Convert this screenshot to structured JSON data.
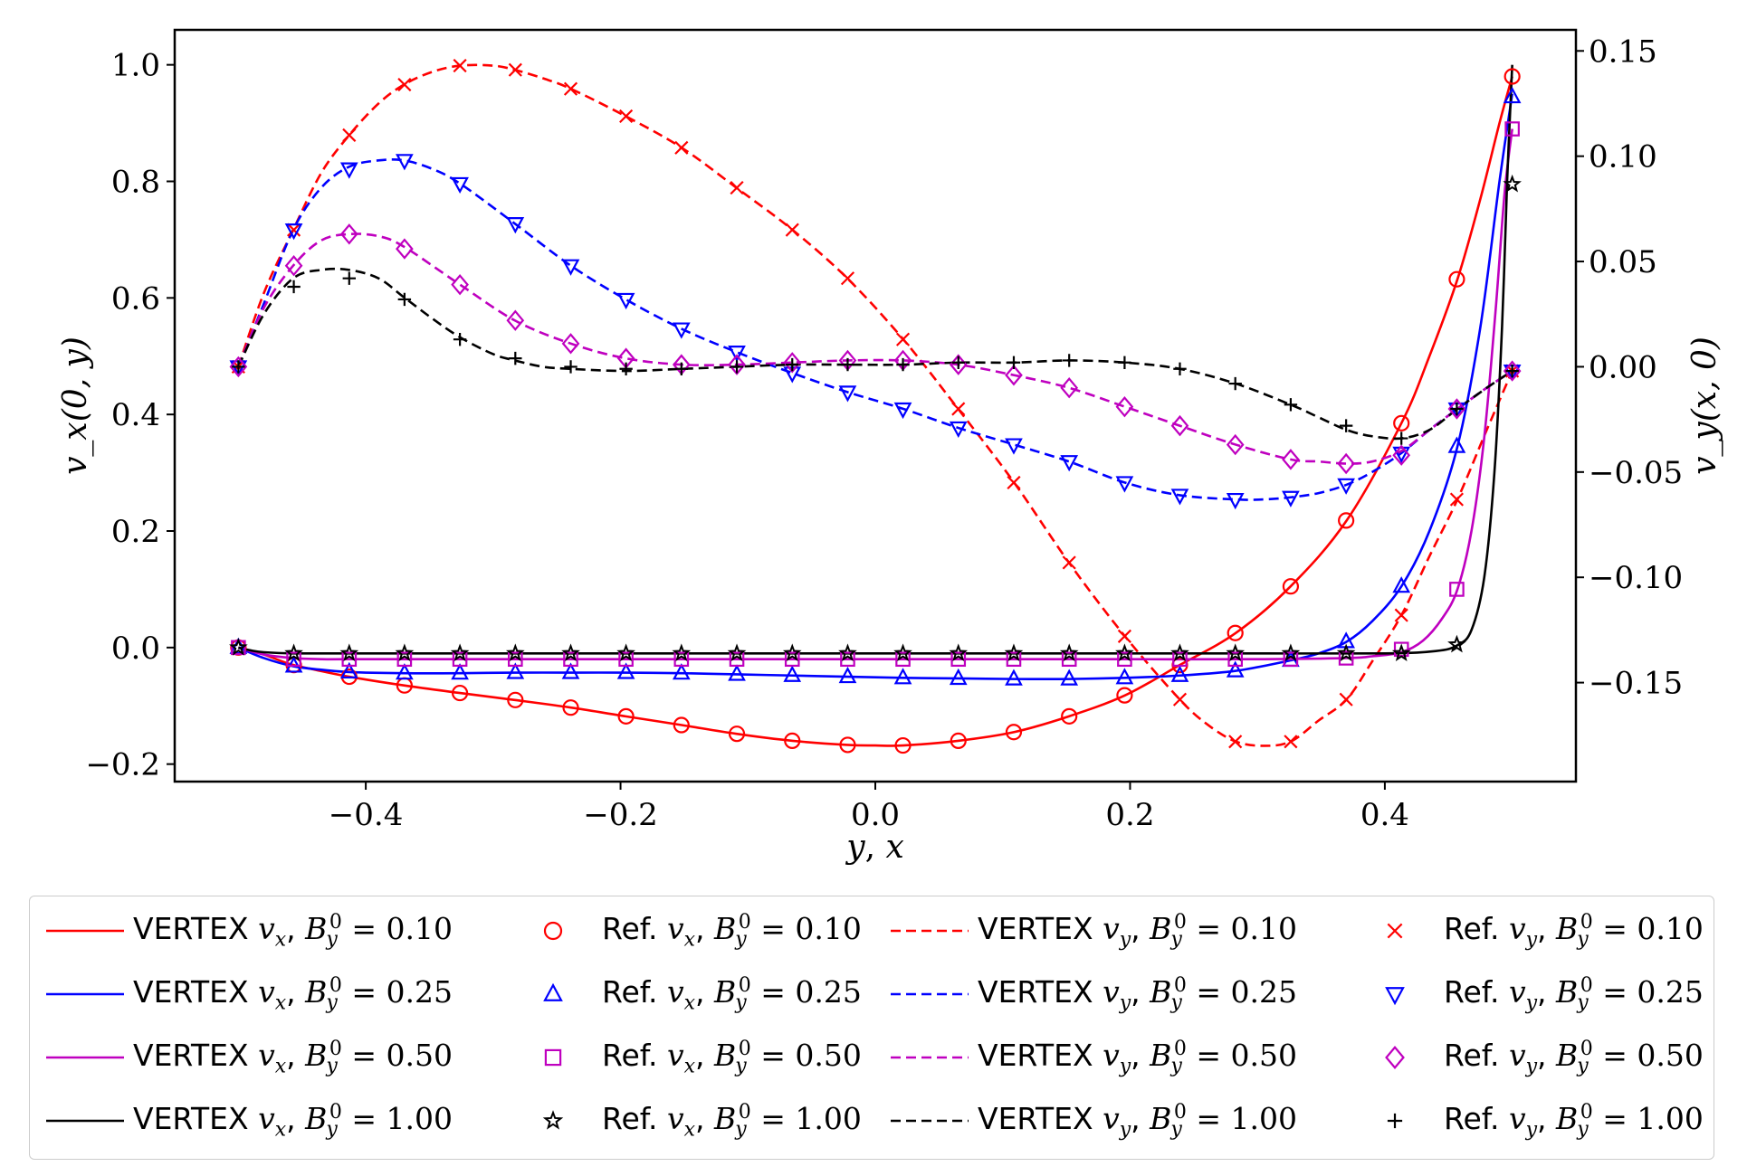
{
  "chart_data": {
    "type": "line",
    "xlabel": "y, x",
    "ylabel_left": "v_x(0, y)",
    "ylabel_right": "v_y(x, 0)",
    "xlim": [
      -0.55,
      0.55
    ],
    "ylim_left": [
      -0.23,
      1.06
    ],
    "ylim_right": [
      -0.197,
      0.16
    ],
    "x_ticks": [
      -0.4,
      -0.2,
      0.0,
      0.2,
      0.4
    ],
    "x_tick_labels": [
      "−0.4",
      "−0.2",
      "0.0",
      "0.2",
      "0.4"
    ],
    "y_left_ticks": [
      -0.2,
      0.0,
      0.2,
      0.4,
      0.6,
      0.8,
      1.0
    ],
    "y_left_tick_labels": [
      "−0.2",
      "0.0",
      "0.2",
      "0.4",
      "0.6",
      "0.8",
      "1.0"
    ],
    "y_right_ticks": [
      -0.15,
      -0.1,
      -0.05,
      0.0,
      0.05,
      0.1,
      0.15
    ],
    "y_right_tick_labels": [
      "−0.15",
      "−0.10",
      "−0.05",
      "0.00",
      "0.05",
      "0.10",
      "0.15"
    ],
    "grid": false,
    "legend_position": "bottom",
    "marker_x": [
      -0.5,
      -0.4565,
      -0.413,
      -0.3696,
      -0.3261,
      -0.2826,
      -0.2391,
      -0.1957,
      -0.1522,
      -0.1087,
      -0.0652,
      -0.0217,
      0.0217,
      0.0652,
      0.1087,
      0.1522,
      0.1957,
      0.2391,
      0.2826,
      0.3261,
      0.3696,
      0.413,
      0.4565,
      0.5
    ],
    "series": [
      {
        "name": "VERTEX v_x, B_y^0 = 0.10",
        "kind": "line",
        "dash": "solid",
        "axis": "left",
        "color": "#ff0000",
        "x": [
          -0.5,
          -0.48,
          -0.46,
          -0.44,
          -0.413,
          -0.37,
          -0.326,
          -0.283,
          -0.239,
          -0.196,
          -0.152,
          -0.109,
          -0.065,
          -0.022,
          0.0,
          0.022,
          0.065,
          0.109,
          0.152,
          0.196,
          0.239,
          0.283,
          0.326,
          0.37,
          0.413,
          0.435,
          0.457,
          0.475,
          0.49,
          0.5
        ],
        "values": [
          0.0,
          -0.012,
          -0.028,
          -0.038,
          -0.05,
          -0.065,
          -0.078,
          -0.09,
          -0.103,
          -0.118,
          -0.133,
          -0.148,
          -0.16,
          -0.167,
          -0.168,
          -0.168,
          -0.16,
          -0.145,
          -0.118,
          -0.082,
          -0.03,
          0.025,
          0.105,
          0.218,
          0.385,
          0.5,
          0.632,
          0.77,
          0.9,
          0.98
        ]
      },
      {
        "name": "Ref. v_x, B_y^0 = 0.10",
        "kind": "marker",
        "marker": "circle",
        "axis": "left",
        "color": "#ff0000",
        "values": [
          0.0,
          -0.03,
          -0.05,
          -0.065,
          -0.078,
          -0.09,
          -0.103,
          -0.118,
          -0.133,
          -0.148,
          -0.16,
          -0.167,
          -0.168,
          -0.16,
          -0.145,
          -0.118,
          -0.082,
          -0.03,
          0.025,
          0.105,
          0.218,
          0.385,
          0.632,
          0.98
        ]
      },
      {
        "name": "VERTEX v_y, B_y^0 = 0.10",
        "kind": "line",
        "dash": "dashed",
        "axis": "right",
        "color": "#ff0000",
        "x": [
          -0.5,
          -0.48,
          -0.457,
          -0.435,
          -0.413,
          -0.39,
          -0.37,
          -0.348,
          -0.326,
          -0.3,
          -0.283,
          -0.261,
          -0.239,
          -0.196,
          -0.152,
          -0.109,
          -0.065,
          -0.022,
          0.022,
          0.065,
          0.109,
          0.152,
          0.196,
          0.239,
          0.261,
          0.283,
          0.305,
          0.326,
          0.348,
          0.37,
          0.39,
          0.413,
          0.435,
          0.457,
          0.48,
          0.5
        ],
        "values": [
          0.0,
          0.035,
          0.065,
          0.092,
          0.11,
          0.125,
          0.134,
          0.14,
          0.143,
          0.143,
          0.141,
          0.137,
          0.132,
          0.119,
          0.104,
          0.085,
          0.065,
          0.042,
          0.013,
          -0.02,
          -0.055,
          -0.093,
          -0.128,
          -0.158,
          -0.17,
          -0.178,
          -0.18,
          -0.178,
          -0.168,
          -0.158,
          -0.14,
          -0.118,
          -0.09,
          -0.063,
          -0.03,
          -0.002
        ]
      },
      {
        "name": "Ref. v_y, B_y^0 = 0.10",
        "kind": "marker",
        "marker": "x",
        "axis": "right",
        "color": "#ff0000",
        "values": [
          0.0,
          0.065,
          0.11,
          0.134,
          0.143,
          0.141,
          0.132,
          0.119,
          0.104,
          0.085,
          0.065,
          0.042,
          0.013,
          -0.02,
          -0.055,
          -0.093,
          -0.128,
          -0.158,
          -0.178,
          -0.178,
          -0.158,
          -0.118,
          -0.063,
          -0.002
        ]
      },
      {
        "name": "VERTEX v_x, B_y^0 = 0.25",
        "kind": "line",
        "dash": "solid",
        "axis": "left",
        "color": "#0000ff",
        "x": [
          -0.5,
          -0.48,
          -0.457,
          -0.435,
          -0.413,
          -0.37,
          -0.326,
          -0.283,
          -0.239,
          -0.196,
          -0.152,
          -0.109,
          -0.065,
          -0.022,
          0.022,
          0.065,
          0.109,
          0.152,
          0.196,
          0.239,
          0.283,
          0.326,
          0.348,
          0.37,
          0.39,
          0.413,
          0.435,
          0.457,
          0.475,
          0.49,
          0.5
        ],
        "values": [
          0.0,
          -0.018,
          -0.032,
          -0.038,
          -0.042,
          -0.044,
          -0.044,
          -0.043,
          -0.043,
          -0.043,
          -0.044,
          -0.046,
          -0.048,
          -0.05,
          -0.052,
          -0.053,
          -0.054,
          -0.054,
          -0.052,
          -0.048,
          -0.04,
          -0.022,
          -0.01,
          0.01,
          0.045,
          0.105,
          0.2,
          0.345,
          0.55,
          0.8,
          0.95
        ]
      },
      {
        "name": "Ref. v_x, B_y^0 = 0.25",
        "kind": "marker",
        "marker": "triangle-up",
        "axis": "left",
        "color": "#0000ff",
        "values": [
          0.0,
          -0.032,
          -0.042,
          -0.044,
          -0.044,
          -0.043,
          -0.043,
          -0.043,
          -0.044,
          -0.046,
          -0.048,
          -0.05,
          -0.052,
          -0.053,
          -0.054,
          -0.054,
          -0.052,
          -0.048,
          -0.04,
          -0.022,
          0.01,
          0.105,
          0.345,
          0.945
        ]
      },
      {
        "name": "VERTEX v_y, B_y^0 = 0.25",
        "kind": "line",
        "dash": "dashed",
        "axis": "right",
        "color": "#0000ff",
        "x": [
          -0.5,
          -0.48,
          -0.457,
          -0.435,
          -0.413,
          -0.39,
          -0.37,
          -0.348,
          -0.326,
          -0.283,
          -0.239,
          -0.196,
          -0.152,
          -0.109,
          -0.065,
          -0.022,
          0.022,
          0.065,
          0.109,
          0.152,
          0.196,
          0.239,
          0.283,
          0.305,
          0.326,
          0.348,
          0.37,
          0.39,
          0.413,
          0.435,
          0.457,
          0.48,
          0.5
        ],
        "values": [
          0.0,
          0.03,
          0.065,
          0.085,
          0.095,
          0.098,
          0.098,
          0.094,
          0.087,
          0.068,
          0.048,
          0.032,
          0.018,
          0.007,
          -0.003,
          -0.012,
          -0.02,
          -0.029,
          -0.037,
          -0.045,
          -0.055,
          -0.061,
          -0.063,
          -0.063,
          -0.062,
          -0.06,
          -0.056,
          -0.05,
          -0.041,
          -0.03,
          -0.02,
          -0.01,
          -0.002
        ]
      },
      {
        "name": "Ref. v_y, B_y^0 = 0.25",
        "kind": "marker",
        "marker": "triangle-down",
        "axis": "right",
        "color": "#0000ff",
        "values": [
          0.0,
          0.065,
          0.094,
          0.098,
          0.087,
          0.068,
          0.048,
          0.032,
          0.018,
          0.007,
          -0.003,
          -0.012,
          -0.02,
          -0.029,
          -0.037,
          -0.045,
          -0.055,
          -0.061,
          -0.063,
          -0.062,
          -0.056,
          -0.041,
          -0.02,
          -0.002
        ]
      },
      {
        "name": "VERTEX v_x, B_y^0 = 0.50",
        "kind": "line",
        "dash": "solid",
        "axis": "left",
        "color": "#bf00bf",
        "x": [
          -0.5,
          -0.48,
          -0.457,
          -0.435,
          -0.413,
          -0.3,
          -0.2,
          -0.1,
          0.0,
          0.1,
          0.2,
          0.3,
          0.37,
          0.39,
          0.413,
          0.43,
          0.445,
          0.457,
          0.468,
          0.478,
          0.487,
          0.494,
          0.5
        ],
        "values": [
          0.0,
          -0.012,
          -0.018,
          -0.02,
          -0.02,
          -0.02,
          -0.02,
          -0.02,
          -0.02,
          -0.02,
          -0.02,
          -0.02,
          -0.018,
          -0.015,
          -0.008,
          0.012,
          0.05,
          0.1,
          0.2,
          0.36,
          0.58,
          0.78,
          0.89
        ]
      },
      {
        "name": "Ref. v_x, B_y^0 = 0.50",
        "kind": "marker",
        "marker": "square",
        "axis": "left",
        "color": "#bf00bf",
        "values": [
          0.0,
          -0.02,
          -0.02,
          -0.02,
          -0.02,
          -0.02,
          -0.02,
          -0.02,
          -0.02,
          -0.02,
          -0.02,
          -0.02,
          -0.02,
          -0.02,
          -0.02,
          -0.02,
          -0.02,
          -0.02,
          -0.02,
          -0.02,
          -0.018,
          -0.003,
          0.1,
          0.89
        ]
      },
      {
        "name": "VERTEX v_y, B_y^0 = 0.50",
        "kind": "line",
        "dash": "dashed",
        "axis": "right",
        "color": "#bf00bf",
        "x": [
          -0.5,
          -0.48,
          -0.457,
          -0.435,
          -0.413,
          -0.39,
          -0.37,
          -0.326,
          -0.283,
          -0.239,
          -0.196,
          -0.152,
          -0.109,
          -0.065,
          -0.022,
          0.022,
          0.065,
          0.109,
          0.152,
          0.196,
          0.239,
          0.283,
          0.326,
          0.348,
          0.37,
          0.39,
          0.413,
          0.435,
          0.457,
          0.48,
          0.5
        ],
        "values": [
          0.0,
          0.028,
          0.048,
          0.06,
          0.063,
          0.062,
          0.057,
          0.039,
          0.022,
          0.011,
          0.004,
          0.001,
          0.001,
          0.002,
          0.003,
          0.003,
          0.001,
          -0.004,
          -0.01,
          -0.019,
          -0.028,
          -0.037,
          -0.044,
          -0.045,
          -0.046,
          -0.045,
          -0.04,
          -0.03,
          -0.02,
          -0.01,
          -0.002
        ]
      },
      {
        "name": "Ref. v_y, B_y^0 = 0.50",
        "kind": "marker",
        "marker": "diamond",
        "axis": "right",
        "color": "#bf00bf",
        "values": [
          0.0,
          0.048,
          0.063,
          0.056,
          0.039,
          0.022,
          0.011,
          0.004,
          0.001,
          0.001,
          0.002,
          0.003,
          0.003,
          0.001,
          -0.004,
          -0.01,
          -0.019,
          -0.028,
          -0.037,
          -0.044,
          -0.046,
          -0.042,
          -0.02,
          -0.002
        ]
      },
      {
        "name": "VERTEX v_x, B_y^0 = 1.00",
        "kind": "line",
        "dash": "solid",
        "axis": "left",
        "color": "#000000",
        "x": [
          -0.5,
          -0.49,
          -0.48,
          -0.457,
          -0.4,
          -0.3,
          -0.2,
          -0.1,
          0.0,
          0.1,
          0.2,
          0.3,
          0.4,
          0.44,
          0.457,
          0.468,
          0.478,
          0.486,
          0.492,
          0.496,
          0.5
        ],
        "values": [
          0.0,
          -0.005,
          -0.008,
          -0.01,
          -0.01,
          -0.01,
          -0.01,
          -0.01,
          -0.01,
          -0.01,
          -0.01,
          -0.01,
          -0.01,
          -0.006,
          0.004,
          0.03,
          0.12,
          0.3,
          0.55,
          0.8,
          1.0
        ]
      },
      {
        "name": "Ref. v_x, B_y^0 = 1.00",
        "kind": "marker",
        "marker": "star",
        "axis": "left",
        "color": "#000000",
        "values": [
          0.0,
          -0.01,
          -0.01,
          -0.01,
          -0.01,
          -0.01,
          -0.01,
          -0.01,
          -0.01,
          -0.01,
          -0.01,
          -0.01,
          -0.01,
          -0.01,
          -0.01,
          -0.01,
          -0.01,
          -0.01,
          -0.01,
          -0.01,
          -0.01,
          -0.01,
          0.005,
          0.795
        ]
      },
      {
        "name": "VERTEX v_y, B_y^0 = 1.00",
        "kind": "line",
        "dash": "dashed",
        "axis": "right",
        "color": "#000000",
        "x": [
          -0.5,
          -0.48,
          -0.457,
          -0.435,
          -0.413,
          -0.39,
          -0.37,
          -0.348,
          -0.326,
          -0.3,
          -0.283,
          -0.261,
          -0.239,
          -0.196,
          -0.152,
          -0.109,
          -0.065,
          -0.022,
          0.022,
          0.065,
          0.109,
          0.152,
          0.196,
          0.239,
          0.283,
          0.326,
          0.348,
          0.37,
          0.39,
          0.413,
          0.435,
          0.457,
          0.48,
          0.5
        ],
        "values": [
          0.0,
          0.025,
          0.042,
          0.046,
          0.046,
          0.042,
          0.033,
          0.023,
          0.014,
          0.006,
          0.003,
          0.0,
          -0.001,
          -0.002,
          -0.001,
          0.0,
          0.001,
          0.001,
          0.001,
          0.002,
          0.002,
          0.003,
          0.002,
          -0.001,
          -0.008,
          -0.018,
          -0.024,
          -0.03,
          -0.033,
          -0.034,
          -0.03,
          -0.02,
          -0.01,
          -0.002
        ]
      },
      {
        "name": "Ref. v_y, B_y^0 = 1.00",
        "kind": "marker",
        "marker": "plus",
        "axis": "right",
        "color": "#000000",
        "values": [
          0.0,
          0.038,
          0.042,
          0.032,
          0.013,
          0.004,
          0.0,
          -0.001,
          -0.001,
          0.0,
          0.001,
          0.001,
          0.001,
          0.002,
          0.002,
          0.003,
          0.002,
          -0.001,
          -0.008,
          -0.018,
          -0.028,
          -0.034,
          -0.02,
          -0.002
        ]
      }
    ]
  },
  "legend": {
    "items": [
      {
        "style": "line-solid",
        "color": "#ff0000",
        "label_prefix": "VERTEX ",
        "var": "v_x",
        "value": "0.10"
      },
      {
        "style": "circle",
        "color": "#ff0000",
        "label_prefix": "Ref. ",
        "var": "v_x",
        "value": "0.10"
      },
      {
        "style": "line-dashed",
        "color": "#ff0000",
        "label_prefix": "VERTEX ",
        "var": "v_y",
        "value": "0.10"
      },
      {
        "style": "x",
        "color": "#ff0000",
        "label_prefix": "Ref. ",
        "var": "v_y",
        "value": "0.10"
      },
      {
        "style": "line-solid",
        "color": "#0000ff",
        "label_prefix": "VERTEX ",
        "var": "v_x",
        "value": "0.25"
      },
      {
        "style": "triangle-up",
        "color": "#0000ff",
        "label_prefix": "Ref. ",
        "var": "v_x",
        "value": "0.25"
      },
      {
        "style": "line-dashed",
        "color": "#0000ff",
        "label_prefix": "VERTEX ",
        "var": "v_y",
        "value": "0.25"
      },
      {
        "style": "triangle-down",
        "color": "#0000ff",
        "label_prefix": "Ref. ",
        "var": "v_y",
        "value": "0.25"
      },
      {
        "style": "line-solid",
        "color": "#bf00bf",
        "label_prefix": "VERTEX ",
        "var": "v_x",
        "value": "0.50"
      },
      {
        "style": "square",
        "color": "#bf00bf",
        "label_prefix": "Ref. ",
        "var": "v_x",
        "value": "0.50"
      },
      {
        "style": "line-dashed",
        "color": "#bf00bf",
        "label_prefix": "VERTEX ",
        "var": "v_y",
        "value": "0.50"
      },
      {
        "style": "diamond",
        "color": "#bf00bf",
        "label_prefix": "Ref. ",
        "var": "v_y",
        "value": "0.50"
      },
      {
        "style": "line-solid",
        "color": "#000000",
        "label_prefix": "VERTEX ",
        "var": "v_x",
        "value": "1.00"
      },
      {
        "style": "star",
        "color": "#000000",
        "label_prefix": "Ref. ",
        "var": "v_x",
        "value": "1.00"
      },
      {
        "style": "line-dashed",
        "color": "#000000",
        "label_prefix": "VERTEX ",
        "var": "v_y",
        "value": "1.00"
      },
      {
        "style": "plus",
        "color": "#000000",
        "label_prefix": "Ref. ",
        "var": "v_y",
        "value": "1.00"
      }
    ]
  }
}
